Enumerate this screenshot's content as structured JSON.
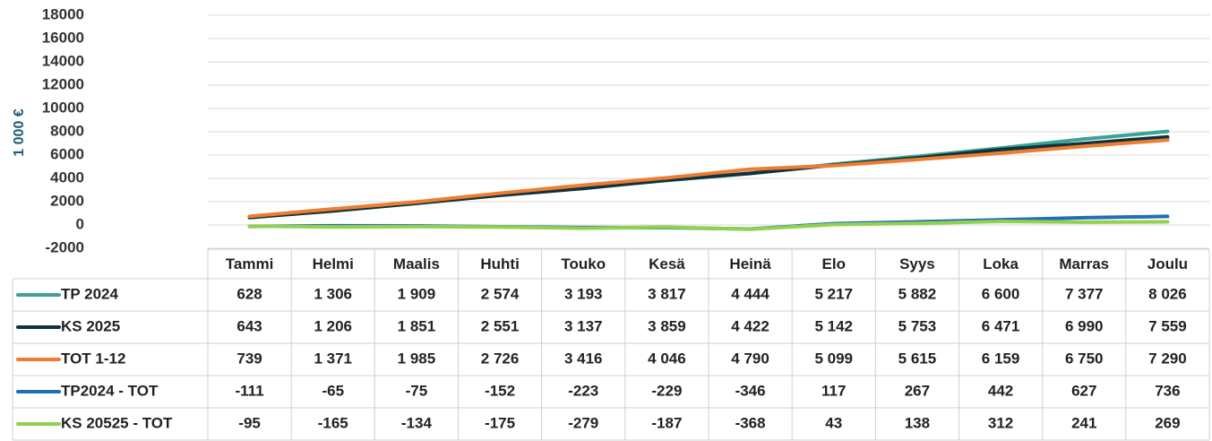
{
  "chart_data": {
    "type": "line",
    "y_label": "1 000 €",
    "categories": [
      "Tammi",
      "Helmi",
      "Maalis",
      "Huhti",
      "Touko",
      "Kesä",
      "Heinä",
      "Elo",
      "Syys",
      "Loka",
      "Marras",
      "Joulu"
    ],
    "ylim": [
      -2000,
      18000
    ],
    "yticks": [
      -2000,
      0,
      2000,
      4000,
      6000,
      8000,
      10000,
      12000,
      14000,
      16000,
      18000
    ],
    "grid": true,
    "series": [
      {
        "name": "TP 2024",
        "color": "#3aa394",
        "values": [
          628,
          1306,
          1909,
          2574,
          3193,
          3817,
          4444,
          5217,
          5882,
          6600,
          7377,
          8026
        ],
        "value_labels": [
          "628",
          "1 306",
          "1 909",
          "2 574",
          "3 193",
          "3 817",
          "4 444",
          "5 217",
          "5 882",
          "6 600",
          "7 377",
          "8 026"
        ]
      },
      {
        "name": "KS 2025",
        "color": "#10323d",
        "values": [
          643,
          1206,
          1851,
          2551,
          3137,
          3859,
          4422,
          5142,
          5753,
          6471,
          6990,
          7559
        ],
        "value_labels": [
          "643",
          "1 206",
          "1 851",
          "2 551",
          "3 137",
          "3 859",
          "4 422",
          "5 142",
          "5 753",
          "6 471",
          "6 990",
          "7 559"
        ]
      },
      {
        "name": "TOT 1-12",
        "color": "#ed7d31",
        "values": [
          739,
          1371,
          1985,
          2726,
          3416,
          4046,
          4790,
          5099,
          5615,
          6159,
          6750,
          7290
        ],
        "value_labels": [
          "739",
          "1 371",
          "1 985",
          "2 726",
          "3 416",
          "4 046",
          "4 790",
          "5 099",
          "5 615",
          "6 159",
          "6 750",
          "7 290"
        ]
      },
      {
        "name": "TP2024 - TOT",
        "color": "#1f6fb5",
        "values": [
          -111,
          -65,
          -75,
          -152,
          -223,
          -229,
          -346,
          117,
          267,
          442,
          627,
          736
        ],
        "value_labels": [
          "-111",
          "-65",
          "-75",
          "-152",
          "-223",
          "-229",
          "-346",
          "117",
          "267",
          "442",
          "627",
          "736"
        ]
      },
      {
        "name": "KS 20525 - TOT",
        "color": "#92d050",
        "values": [
          -95,
          -165,
          -134,
          -175,
          -279,
          -187,
          -368,
          43,
          138,
          312,
          241,
          269
        ],
        "value_labels": [
          "-95",
          "-165",
          "-134",
          "-175",
          "-279",
          "-187",
          "-368",
          "43",
          "138",
          "312",
          "241",
          "269"
        ]
      }
    ]
  }
}
